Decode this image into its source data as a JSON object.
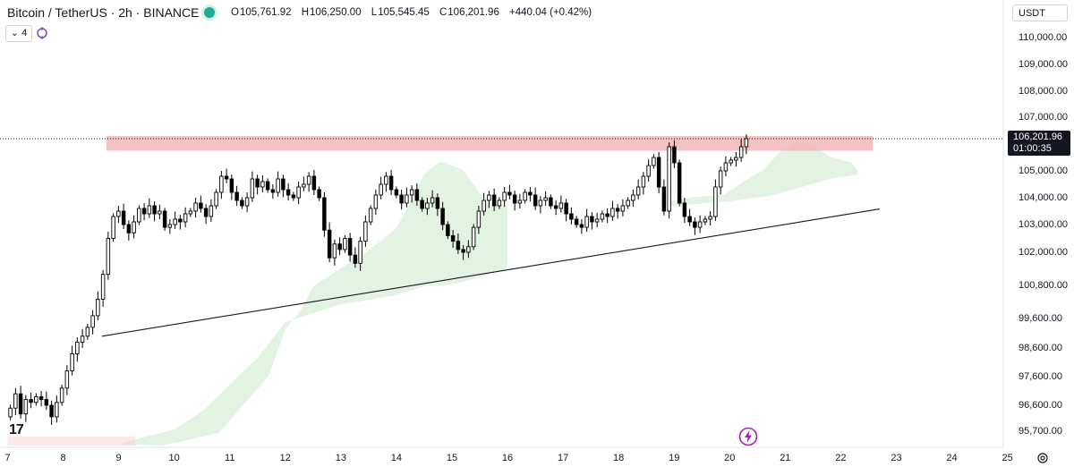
{
  "header": {
    "symbol": "Bitcoin / TetherUS · 2h · BINANCE",
    "ohlc": {
      "open_label": "O",
      "open": "105,761.92",
      "high_label": "H",
      "high": "106,250.00",
      "low_label": "L",
      "low": "105,545.45",
      "close_label": "C",
      "close": "106,201.96",
      "change": "+440.04 (+0.42%)"
    }
  },
  "indicators": {
    "toggle_label": "4"
  },
  "currency": {
    "label": "USDT"
  },
  "price_tag": {
    "price": "106,201.96",
    "countdown": "01:00:35"
  },
  "colors": {
    "resistance_zone": "#f2aeb0",
    "cloud_bull": "#a5d6a7",
    "cloud_bear": "#ffcdd2",
    "trendline": "#131722",
    "candle": "#000000",
    "live_dot": "#22ab94",
    "bolt": "#9c27b0"
  },
  "chart_data": {
    "type": "candlestick",
    "symbol": "BTCUSDT",
    "interval": "2h",
    "y_ticks": [
      "110,000.00",
      "109,000.00",
      "108,000.00",
      "107,000.00",
      "105,000.00",
      "104,000.00",
      "103,000.00",
      "102,000.00",
      "100,800.00",
      "99,600.00",
      "98,600.00",
      "97,600.00",
      "96,600.00",
      "95,700.00"
    ],
    "x_ticks": [
      "7",
      "8",
      "9",
      "10",
      "11",
      "12",
      "13",
      "14",
      "15",
      "16",
      "17",
      "18",
      "19",
      "20",
      "21",
      "22",
      "23",
      "24",
      "25"
    ],
    "last_price": 106201.96,
    "resistance_zone": {
      "from": 105750,
      "to": 106300
    },
    "trendline": {
      "start": {
        "x": "8.7",
        "y": 99000
      },
      "end": {
        "x": "22.7",
        "y": 103580
      }
    },
    "closes": [
      96500,
      97000,
      96300,
      96800,
      96700,
      96900,
      96800,
      96600,
      96200,
      96700,
      97200,
      97800,
      98400,
      98800,
      99000,
      99300,
      99700,
      100300,
      101200,
      102500,
      103300,
      103500,
      103000,
      102700,
      103100,
      103600,
      103400,
      103700,
      103400,
      103500,
      102900,
      103000,
      103200,
      103100,
      103400,
      103500,
      103800,
      103600,
      103300,
      103700,
      104200,
      104800,
      104700,
      104200,
      103900,
      103700,
      104000,
      104700,
      104400,
      104600,
      104300,
      104200,
      104700,
      104300,
      104100,
      104000,
      104400,
      104500,
      104800,
      104300,
      104000,
      102800,
      101800,
      102300,
      102100,
      102500,
      101900,
      101600,
      102400,
      103100,
      103600,
      104100,
      104500,
      104800,
      104300,
      104100,
      103800,
      104100,
      104300,
      103900,
      103600,
      103800,
      104000,
      103600,
      103000,
      102600,
      102400,
      102100,
      102000,
      102200,
      102900,
      103500,
      103900,
      104100,
      103700,
      103900,
      104200,
      104100,
      103800,
      103900,
      104200,
      104100,
      103700,
      103900,
      104000,
      103700,
      103600,
      103800,
      103400,
      103200,
      103000,
      102900,
      103300,
      103100,
      103200,
      103400,
      103300,
      103600,
      103500,
      103700,
      103900,
      104100,
      104400,
      104800,
      105200,
      105500,
      104400,
      103500,
      105900,
      105300,
      103800,
      103300,
      103100,
      102900,
      103100,
      103200,
      103300,
      104400,
      105000,
      105300,
      105400,
      105500,
      105900,
      106200
    ]
  }
}
